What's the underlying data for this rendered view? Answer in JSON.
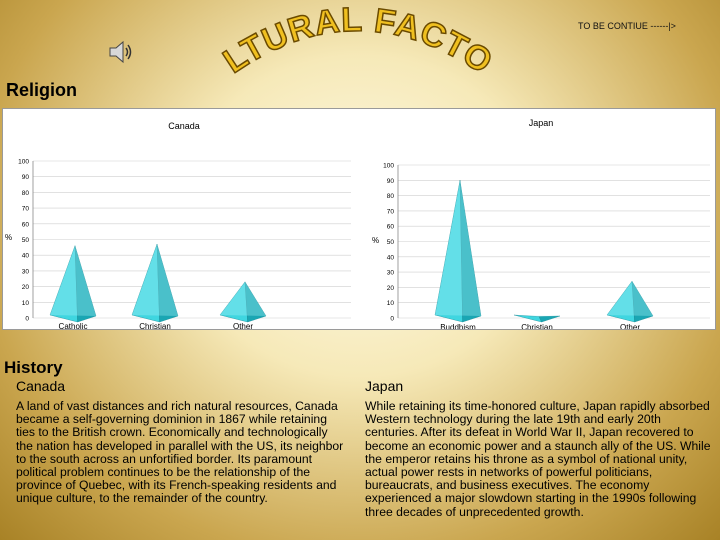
{
  "header": {
    "continue_label": "TO BE CONTIUE ------|>",
    "wordart_title": "CULTURAL FACTORS",
    "speaker_icon": "speaker-icon"
  },
  "religion": {
    "heading": "Religion"
  },
  "history": {
    "heading": "History",
    "canada": {
      "title": "Canada",
      "text": "A land of vast distances and rich natural resources, Canada became a self-governing dominion in 1867 while retaining ties to the British crown. Economically and technologically the nation has developed in parallel with the US, its neighbor to the south across an unfortified border. Its paramount political problem continues to be the relationship of the province of Quebec, with its French-speaking residents and unique culture, to the remainder of the country."
    },
    "japan": {
      "title": "Japan",
      "text": "While retaining its time-honored culture, Japan rapidly absorbed Western technology during the late 19th and early 20th centuries. After its defeat in World War II, Japan recovered to become an economic power and a staunch ally of the US. While the emperor retains his throne as a symbol of national unity, actual power rests in networks of powerful politicians, bureaucrats, and business executives. The economy experienced a major slowdown starting in the 1990s following three decades of unprecedented growth."
    }
  },
  "colors": {
    "pyramid_main": "#3fd6e0",
    "pyramid_dark": "#1aa6b3",
    "pyramid_light": "#a6f1f5",
    "wordart_fill": "#f0c020",
    "wordart_stroke": "#7a5a00"
  },
  "chart_data": [
    {
      "type": "bar",
      "title": "Canada",
      "ylabel": "%",
      "ylim": [
        0,
        100
      ],
      "yticks": [
        0,
        10,
        20,
        30,
        40,
        50,
        60,
        70,
        80,
        90,
        100
      ],
      "categories": [
        "Catholic",
        "Christian",
        "Other"
      ],
      "values": [
        46,
        47,
        23
      ]
    },
    {
      "type": "bar",
      "title": "Japan",
      "ylabel": "%",
      "ylim": [
        0,
        100
      ],
      "yticks": [
        0,
        10,
        20,
        30,
        40,
        50,
        60,
        70,
        80,
        90,
        100
      ],
      "categories": [
        "Buddhism",
        "Christian",
        "Other"
      ],
      "values": [
        90,
        1,
        24
      ]
    }
  ]
}
